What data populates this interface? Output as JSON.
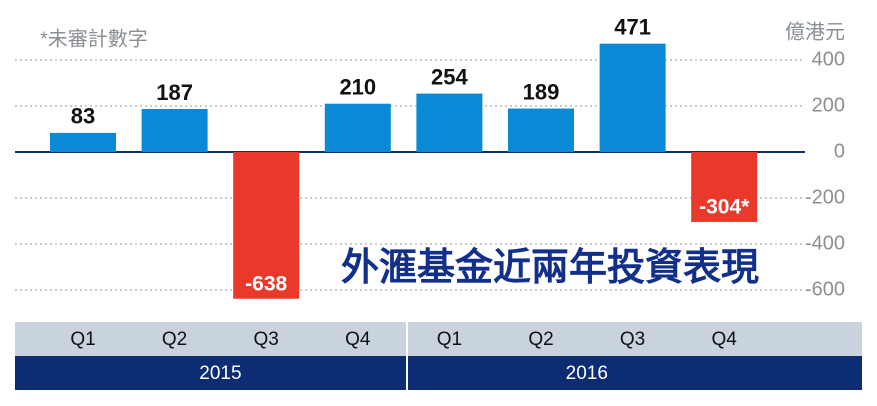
{
  "chart_data": {
    "type": "bar",
    "title": "外滙基金近兩年投資表現",
    "note": "*未審計數字",
    "y_unit": "億港元",
    "categories": [
      "Q1",
      "Q2",
      "Q3",
      "Q4",
      "Q1",
      "Q2",
      "Q3",
      "Q4"
    ],
    "groups": [
      "2015",
      "2016"
    ],
    "values": [
      83,
      187,
      -638,
      210,
      254,
      189,
      471,
      -304
    ],
    "value_labels": [
      "83",
      "187",
      "-638",
      "210",
      "254",
      "189",
      "471",
      "-304*"
    ],
    "color": "#0a8ad6",
    "negative_color": "#e8392a",
    "ylim": [
      -650,
      500
    ],
    "yticks": [
      -600,
      -400,
      -200,
      0,
      200,
      400
    ],
    "grid": true
  }
}
